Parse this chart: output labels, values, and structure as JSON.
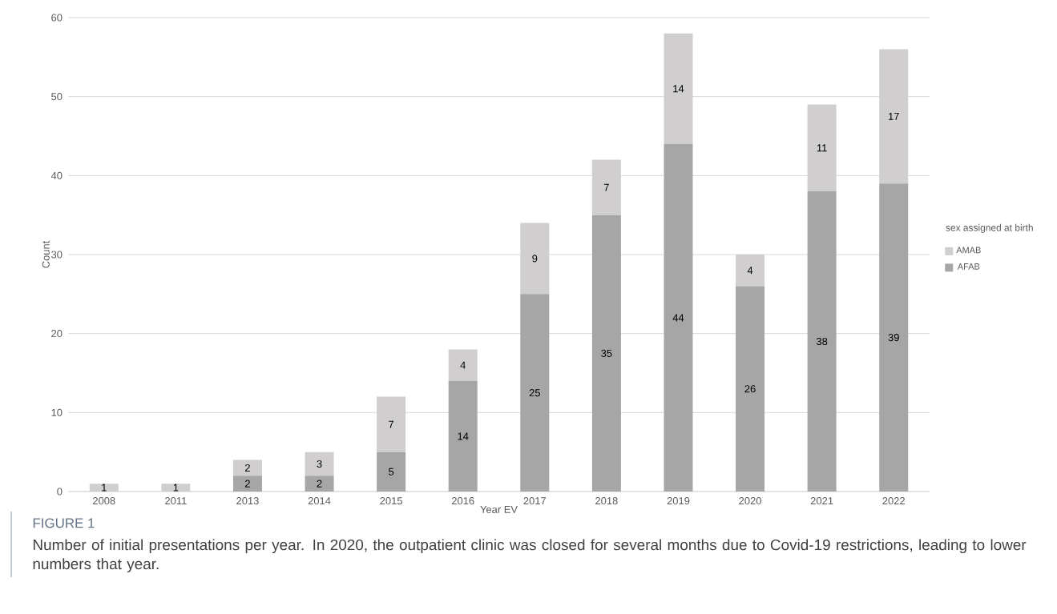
{
  "chart_data": {
    "type": "bar",
    "stacked": true,
    "categories": [
      "2008",
      "2011",
      "2013",
      "2014",
      "2015",
      "2016",
      "2017",
      "2018",
      "2019",
      "2020",
      "2021",
      "2022"
    ],
    "series": [
      {
        "name": "AFAB",
        "color": "#a6a6a6",
        "values": [
          null,
          null,
          2,
          2,
          5,
          14,
          25,
          35,
          44,
          26,
          38,
          39
        ]
      },
      {
        "name": "AMAB",
        "color": "#d0cece",
        "values": [
          1,
          1,
          2,
          3,
          7,
          4,
          9,
          7,
          14,
          4,
          11,
          17
        ]
      }
    ],
    "xlabel": "Year EV",
    "ylabel": "Count",
    "legend_title": "sex assigned at birth",
    "ylim": [
      0,
      60
    ],
    "yticks": [
      0,
      10,
      20,
      30,
      40,
      50,
      60
    ],
    "grid": "y",
    "legend": "right",
    "data_labels": true,
    "annotations": [
      "FIGURE 1",
      "Number of initial presentations per year. In 2020, the outpatient clinic was closed for several months due to Covid-19 restrictions, leading to lower numbers that year."
    ]
  }
}
